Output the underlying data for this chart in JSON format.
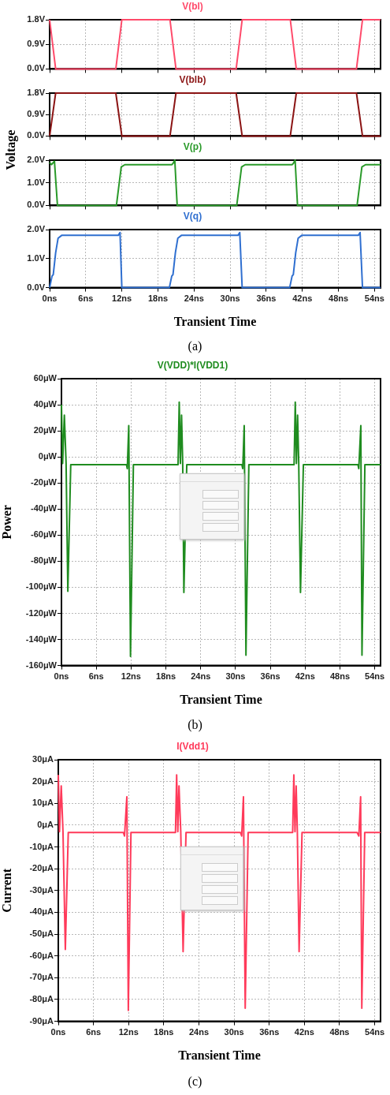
{
  "chart_data": [
    {
      "type": "line",
      "ylabel": "Voltage",
      "legend": "top",
      "grid": true,
      "marker": "none",
      "line_style": "solid",
      "tick_labels": "y",
      "xlim": [
        0,
        55
      ],
      "ylim": [
        0,
        1.8
      ],
      "xticks": [
        {
          "value": 0,
          "label": null
        },
        {
          "value": 6,
          "label": null
        },
        {
          "value": 12,
          "label": null
        },
        {
          "value": 18,
          "label": null
        },
        {
          "value": 24,
          "label": null
        },
        {
          "value": 30,
          "label": null
        },
        {
          "value": 36,
          "label": null
        },
        {
          "value": 42,
          "label": null
        },
        {
          "value": 48,
          "label": null
        },
        {
          "value": 54,
          "label": null
        }
      ],
      "yticks": [
        {
          "value": 0,
          "label": "0.0V"
        },
        {
          "value": 0.9,
          "label": "0.9V"
        },
        {
          "value": 1.8,
          "label": "1.8V"
        }
      ],
      "series": [
        {
          "name": "V(bl)",
          "color": "#ff4a6a",
          "x": [
            0,
            1,
            11,
            12,
            20,
            21,
            31,
            32,
            40,
            41,
            51,
            52,
            55
          ],
          "values": [
            1.8,
            0,
            0,
            1.8,
            1.8,
            0,
            0,
            1.8,
            1.8,
            0,
            0,
            1.8,
            1.8
          ]
        }
      ]
    },
    {
      "type": "line",
      "legend": "top",
      "grid": true,
      "marker": "none",
      "line_style": "solid",
      "tick_labels": "y",
      "xlim": [
        0,
        55
      ],
      "ylim": [
        0,
        1.8
      ],
      "xticks": [
        {
          "value": 0,
          "label": null
        },
        {
          "value": 6,
          "label": null
        },
        {
          "value": 12,
          "label": null
        },
        {
          "value": 18,
          "label": null
        },
        {
          "value": 24,
          "label": null
        },
        {
          "value": 30,
          "label": null
        },
        {
          "value": 36,
          "label": null
        },
        {
          "value": 42,
          "label": null
        },
        {
          "value": 48,
          "label": null
        },
        {
          "value": 54,
          "label": null
        }
      ],
      "yticks": [
        {
          "value": 0,
          "label": "0.0V"
        },
        {
          "value": 0.9,
          "label": "0.9V"
        },
        {
          "value": 1.8,
          "label": "1.8V"
        }
      ],
      "series": [
        {
          "name": "V(blb)",
          "color": "#8b1414",
          "x": [
            0,
            1,
            11,
            12,
            20,
            21,
            31,
            32,
            40,
            41,
            51,
            52,
            55
          ],
          "values": [
            0,
            1.8,
            1.8,
            0,
            0,
            1.8,
            1.8,
            0,
            0,
            1.8,
            1.8,
            0,
            0
          ]
        }
      ]
    },
    {
      "type": "line",
      "legend": "top",
      "grid": true,
      "marker": "none",
      "line_style": "solid",
      "tick_labels": "y",
      "xlim": [
        0,
        55
      ],
      "ylim": [
        0,
        2
      ],
      "xticks": [
        {
          "value": 0,
          "label": null
        },
        {
          "value": 6,
          "label": null
        },
        {
          "value": 12,
          "label": null
        },
        {
          "value": 18,
          "label": null
        },
        {
          "value": 24,
          "label": null
        },
        {
          "value": 30,
          "label": null
        },
        {
          "value": 36,
          "label": null
        },
        {
          "value": 42,
          "label": null
        },
        {
          "value": 48,
          "label": null
        },
        {
          "value": 54,
          "label": null
        }
      ],
      "yticks": [
        {
          "value": 0,
          "label": "0.0V"
        },
        {
          "value": 1,
          "label": "1.0V"
        },
        {
          "value": 2,
          "label": "2.0V"
        }
      ],
      "series": [
        {
          "name": "V(p)",
          "color": "#2a9a2a",
          "x": [
            0,
            0.3,
            0.8,
            1.3,
            11.1,
            11.9,
            12.5,
            20.3,
            20.5,
            20.8,
            21.2,
            31.1,
            31.9,
            32.5,
            40.3,
            40.5,
            40.8,
            41.2,
            51.1,
            51.9,
            52.5,
            55
          ],
          "values": [
            1.9,
            1.8,
            1.95,
            0,
            0,
            1.7,
            1.8,
            1.8,
            1.85,
            2,
            0,
            0,
            1.7,
            1.8,
            1.8,
            1.85,
            2,
            0,
            0,
            1.7,
            1.8,
            1.8
          ]
        }
      ]
    },
    {
      "type": "line",
      "xlabel": "Transient Time",
      "legend": "top",
      "grid": true,
      "marker": "none",
      "line_style": "solid",
      "xlim": [
        0,
        55
      ],
      "ylim": [
        0,
        2
      ],
      "xticks": [
        {
          "value": 0,
          "label": "0ns"
        },
        {
          "value": 6,
          "label": "6ns"
        },
        {
          "value": 12,
          "label": "12ns"
        },
        {
          "value": 18,
          "label": "18ns"
        },
        {
          "value": 24,
          "label": "24ns"
        },
        {
          "value": 30,
          "label": "30ns"
        },
        {
          "value": 36,
          "label": "36ns"
        },
        {
          "value": 42,
          "label": "42ns"
        },
        {
          "value": 48,
          "label": "48ns"
        },
        {
          "value": 54,
          "label": "54ns"
        }
      ],
      "yticks": [
        {
          "value": 0,
          "label": "0.0V"
        },
        {
          "value": 1,
          "label": "1.0V"
        },
        {
          "value": 2,
          "label": "2.0V"
        }
      ],
      "annotations": [
        "(a)"
      ],
      "series": [
        {
          "name": "V(q)",
          "color": "#2f6fd0",
          "x": [
            0,
            0.4,
            0.6,
            1,
            1.4,
            2,
            11.4,
            11.7,
            12,
            19.9,
            20.3,
            20.5,
            20.9,
            21.3,
            21.9,
            31.3,
            31.6,
            32,
            39.9,
            40.3,
            40.5,
            40.9,
            41.3,
            41.9,
            51.3,
            51.6,
            52,
            55
          ],
          "values": [
            0,
            0.4,
            0.45,
            1.2,
            1.7,
            1.8,
            1.8,
            1.9,
            0,
            0,
            0.4,
            0.45,
            1.2,
            1.7,
            1.8,
            1.8,
            1.9,
            0,
            0,
            0.4,
            0.45,
            1.2,
            1.7,
            1.8,
            1.8,
            1.9,
            0,
            0
          ]
        }
      ]
    },
    {
      "type": "line",
      "xlabel": "Transient Time",
      "ylabel": "Power",
      "legend": "top",
      "grid": true,
      "marker": "none",
      "line_style": "solid",
      "xlim": [
        0,
        55
      ],
      "ylim": [
        -160,
        60
      ],
      "xticks": [
        {
          "value": 0,
          "label": "0ns"
        },
        {
          "value": 6,
          "label": "6ns"
        },
        {
          "value": 12,
          "label": "12ns"
        },
        {
          "value": 18,
          "label": "18ns"
        },
        {
          "value": 24,
          "label": "24ns"
        },
        {
          "value": 30,
          "label": "30ns"
        },
        {
          "value": 36,
          "label": "36ns"
        },
        {
          "value": 42,
          "label": "42ns"
        },
        {
          "value": 48,
          "label": "48ns"
        },
        {
          "value": 54,
          "label": "54ns"
        }
      ],
      "yticks": [
        {
          "value": -160,
          "label": "-160μW"
        },
        {
          "value": -140,
          "label": "-140μW"
        },
        {
          "value": -120,
          "label": "-120μW"
        },
        {
          "value": -100,
          "label": "-100μW"
        },
        {
          "value": -80,
          "label": "-80μW"
        },
        {
          "value": -60,
          "label": "-60μW"
        },
        {
          "value": -40,
          "label": "-40μW"
        },
        {
          "value": -20,
          "label": "-20μW"
        },
        {
          "value": 0,
          "label": "0μW"
        },
        {
          "value": 20,
          "label": "20μW"
        },
        {
          "value": 40,
          "label": "40μW"
        },
        {
          "value": 60,
          "label": "60μW"
        }
      ],
      "annotations": [
        "(b)"
      ],
      "series": [
        {
          "name": "V(VDD)*I(VDD1)",
          "color": "#1f8c1f",
          "x": [
            0,
            0.2,
            0.5,
            0.8,
            1.1,
            1.6,
            11.2,
            11.35,
            11.6,
            11.9,
            12.4,
            20.1,
            20.3,
            20.5,
            20.7,
            20.9,
            21.1,
            21.6,
            31.1,
            31.25,
            31.5,
            31.8,
            32.3,
            40.1,
            40.3,
            40.5,
            40.7,
            40.9,
            41.2,
            41.7,
            51.1,
            51.25,
            51.6,
            51.8,
            52.3,
            55
          ],
          "values": [
            40,
            -5,
            32,
            -5,
            -103,
            -6,
            -6,
            -9,
            24,
            -153,
            -6,
            -6,
            42,
            -5,
            32,
            -5,
            -104,
            -6,
            -6,
            -9,
            24,
            -152,
            -6,
            -6,
            42,
            -5,
            32,
            -5,
            -104,
            -6,
            -6,
            -9,
            24,
            -152,
            -6,
            -6
          ]
        }
      ]
    },
    {
      "type": "line",
      "xlabel": "Transient Time",
      "ylabel": "Current",
      "legend": "top",
      "grid": true,
      "marker": "none",
      "line_style": "solid",
      "xlim": [
        0,
        55
      ],
      "ylim": [
        -90,
        30
      ],
      "xticks": [
        {
          "value": 0,
          "label": "0ns"
        },
        {
          "value": 6,
          "label": "6ns"
        },
        {
          "value": 12,
          "label": "12ns"
        },
        {
          "value": 18,
          "label": "18ns"
        },
        {
          "value": 24,
          "label": "24ns"
        },
        {
          "value": 30,
          "label": "30ns"
        },
        {
          "value": 36,
          "label": "36ns"
        },
        {
          "value": 42,
          "label": "42ns"
        },
        {
          "value": 48,
          "label": "48ns"
        },
        {
          "value": 54,
          "label": "54ns"
        }
      ],
      "yticks": [
        {
          "value": -90,
          "label": "-90μA"
        },
        {
          "value": -80,
          "label": "-80μA"
        },
        {
          "value": -70,
          "label": "-70μA"
        },
        {
          "value": -60,
          "label": "-60μA"
        },
        {
          "value": -50,
          "label": "-50μA"
        },
        {
          "value": -40,
          "label": "-40μA"
        },
        {
          "value": -30,
          "label": "-30μA"
        },
        {
          "value": -20,
          "label": "-20μA"
        },
        {
          "value": -10,
          "label": "-10μA"
        },
        {
          "value": 0,
          "label": "0μA"
        },
        {
          "value": 10,
          "label": "10μA"
        },
        {
          "value": 20,
          "label": "20μA"
        },
        {
          "value": 30,
          "label": "30μA"
        }
      ],
      "annotations": [
        "(c)"
      ],
      "series": [
        {
          "name": "I(Vdd1)",
          "color": "#ff3a5a",
          "x": [
            0,
            0.2,
            0.5,
            0.8,
            1.2,
            1.7,
            11.1,
            11.3,
            11.7,
            11.95,
            12.4,
            20,
            20.2,
            20.4,
            20.6,
            20.9,
            21.3,
            21.8,
            31.1,
            31.3,
            31.6,
            31.9,
            32.4,
            40,
            40.2,
            40.4,
            40.6,
            40.8,
            41.1,
            41.6,
            51,
            51.3,
            51.6,
            51.8,
            52.3,
            55
          ],
          "values": [
            23,
            -3,
            18,
            -3,
            -57,
            -3.4,
            -3.4,
            -5,
            13,
            -85,
            -3.4,
            -3.4,
            23,
            -3,
            18,
            -3,
            -58,
            -3.4,
            -3.4,
            -5,
            13,
            -84,
            -3.4,
            -3.4,
            23,
            -3,
            18,
            -3,
            -58,
            -3.4,
            -3.4,
            -5,
            13,
            -84,
            -3.4,
            -3.4
          ]
        }
      ]
    }
  ]
}
